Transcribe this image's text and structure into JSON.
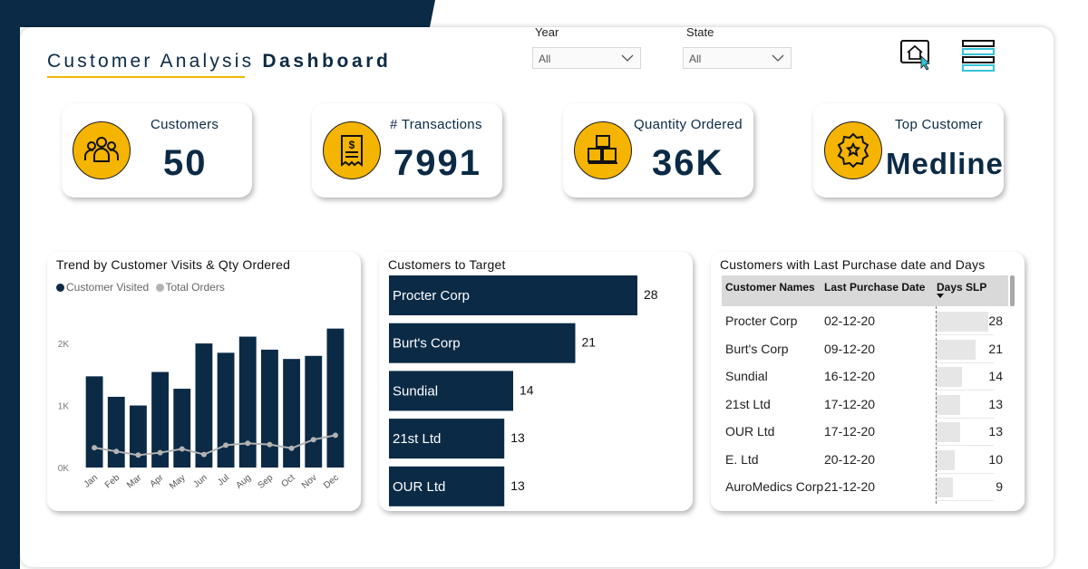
{
  "header": {
    "title_regular": "Customer Analysis",
    "title_bold": "Dashboard"
  },
  "filters": {
    "year": {
      "label": "Year",
      "value": "All"
    },
    "state": {
      "label": "State",
      "value": "All"
    }
  },
  "toolbar": {
    "home_icon": "home-cursor-icon",
    "menu_icon": "menu-lines-icon"
  },
  "kpis": [
    {
      "label": "Customers",
      "value": "50",
      "icon": "people-group-icon"
    },
    {
      "label": "# Transactions",
      "value": "7991",
      "icon": "receipt-dollar-icon"
    },
    {
      "label": "Quantity Ordered",
      "value": "36K",
      "icon": "boxes-icon"
    },
    {
      "label": "Top Customer",
      "value": "Medline",
      "icon": "award-badge-icon"
    }
  ],
  "colors": {
    "navy": "#0b2a45",
    "gold": "#f4b400",
    "line_gray": "#b3b3b3"
  },
  "chart_data": [
    {
      "type": "bar",
      "title": "Trend by Customer Visits & Qty Ordered",
      "legend": [
        "Customer Visited",
        "Total Orders"
      ],
      "categories": [
        "Jan",
        "Feb",
        "Mar",
        "Apr",
        "May",
        "Jun",
        "Jul",
        "Aug",
        "Sep",
        "Oct",
        "Nov",
        "Dec"
      ],
      "series": [
        {
          "name": "Customer Visited",
          "kind": "bar",
          "values": [
            1470,
            1140,
            1000,
            1540,
            1270,
            2000,
            1850,
            2110,
            1900,
            1750,
            1800,
            2240
          ]
        },
        {
          "name": "Total Orders",
          "kind": "line",
          "values": [
            320,
            260,
            200,
            240,
            300,
            210,
            360,
            390,
            370,
            310,
            450,
            520
          ]
        }
      ],
      "yticks": [
        "0K",
        "1K",
        "2K"
      ],
      "ylim": [
        0,
        2600
      ]
    },
    {
      "type": "bar",
      "orientation": "horizontal",
      "title": "Customers to Target",
      "categories": [
        "Procter Corp",
        "Burt's Corp",
        "Sundial",
        "21st Ltd",
        "OUR Ltd"
      ],
      "values": [
        28,
        21,
        14,
        13,
        13
      ],
      "xlim": [
        0,
        28
      ]
    },
    {
      "type": "table",
      "title": "Customers with Last Purchase date and Days",
      "columns": [
        "Customer Names",
        "Last Purchase Date",
        "Days SLP"
      ],
      "rows": [
        [
          "Procter Corp",
          "02-12-20",
          28
        ],
        [
          "Burt's Corp",
          "09-12-20",
          21
        ],
        [
          "Sundial",
          "16-12-20",
          14
        ],
        [
          "21st Ltd",
          "17-12-20",
          13
        ],
        [
          "OUR Ltd",
          "17-12-20",
          13
        ],
        [
          "E. Ltd",
          "20-12-20",
          10
        ],
        [
          "AuroMedics Corp",
          "21-12-20",
          9
        ]
      ],
      "max_days": 28
    }
  ]
}
